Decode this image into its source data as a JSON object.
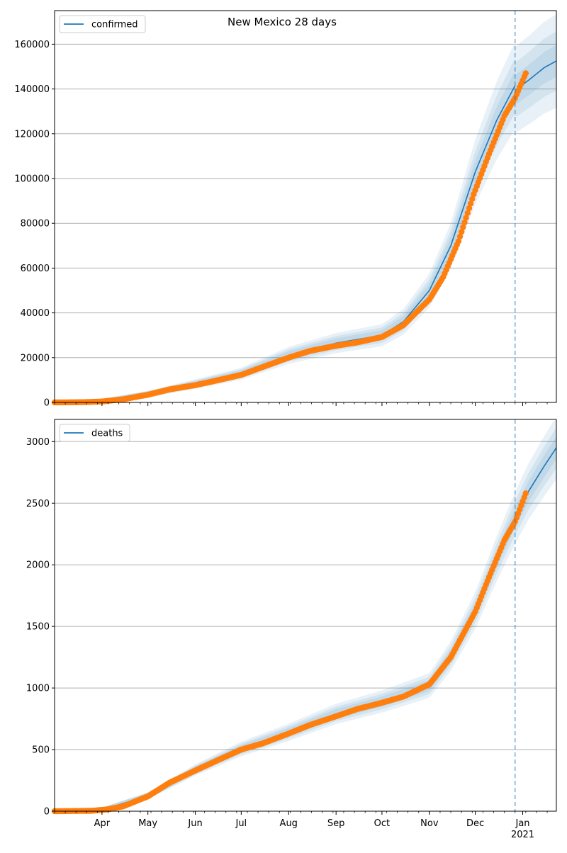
{
  "title": "New Mexico 28 days",
  "colors": {
    "model_line": "#1f77b4",
    "band": "#1f77b4",
    "observed": "#ff7f0e",
    "forecast_marker": "#1f77b4",
    "grid": "#b0b0b0"
  },
  "x_axis": {
    "date_range": [
      "2020-03-01",
      "2021-01-23"
    ],
    "month_labels": [
      {
        "date": "2020-04-01",
        "label": "Apr"
      },
      {
        "date": "2020-05-01",
        "label": "May"
      },
      {
        "date": "2020-06-01",
        "label": "Jun"
      },
      {
        "date": "2020-07-01",
        "label": "Jul"
      },
      {
        "date": "2020-08-01",
        "label": "Aug"
      },
      {
        "date": "2020-09-01",
        "label": "Sep"
      },
      {
        "date": "2020-10-01",
        "label": "Oct"
      },
      {
        "date": "2020-11-01",
        "label": "Nov"
      },
      {
        "date": "2020-12-01",
        "label": "Dec"
      },
      {
        "date": "2021-01-01",
        "label": "Jan"
      }
    ],
    "year_label": "2021",
    "forecast_start": "2020-12-27"
  },
  "chart_data": [
    {
      "type": "line",
      "legend": "confirmed",
      "legend_position": "top-left",
      "grid": "y",
      "ylim": [
        0,
        175000
      ],
      "yticks": [
        0,
        20000,
        40000,
        60000,
        80000,
        100000,
        120000,
        140000,
        160000
      ],
      "ytick_labels": [
        "0",
        "20000",
        "40000",
        "60000",
        "80000",
        "100000",
        "120000",
        "140000",
        "160000"
      ],
      "observed": [
        {
          "date": "2020-03-01",
          "value": 0
        },
        {
          "date": "2020-03-20",
          "value": 100
        },
        {
          "date": "2020-04-01",
          "value": 400
        },
        {
          "date": "2020-04-15",
          "value": 1400
        },
        {
          "date": "2020-05-01",
          "value": 3400
        },
        {
          "date": "2020-05-15",
          "value": 5800
        },
        {
          "date": "2020-06-01",
          "value": 7700
        },
        {
          "date": "2020-06-15",
          "value": 9800
        },
        {
          "date": "2020-07-01",
          "value": 12300
        },
        {
          "date": "2020-07-15",
          "value": 15800
        },
        {
          "date": "2020-08-01",
          "value": 20000
        },
        {
          "date": "2020-08-15",
          "value": 23000
        },
        {
          "date": "2020-09-01",
          "value": 25300
        },
        {
          "date": "2020-09-15",
          "value": 26800
        },
        {
          "date": "2020-10-01",
          "value": 29200
        },
        {
          "date": "2020-10-15",
          "value": 34500
        },
        {
          "date": "2020-11-01",
          "value": 46000
        },
        {
          "date": "2020-11-10",
          "value": 56000
        },
        {
          "date": "2020-11-20",
          "value": 72000
        },
        {
          "date": "2020-11-30",
          "value": 93000
        },
        {
          "date": "2020-12-10",
          "value": 111000
        },
        {
          "date": "2020-12-20",
          "value": 128000
        },
        {
          "date": "2020-12-27",
          "value": 136000
        },
        {
          "date": "2021-01-03",
          "value": 147000
        }
      ],
      "model": [
        {
          "date": "2020-03-01",
          "value": 0
        },
        {
          "date": "2020-04-01",
          "value": 500
        },
        {
          "date": "2020-05-01",
          "value": 3700
        },
        {
          "date": "2020-06-01",
          "value": 8200
        },
        {
          "date": "2020-07-01",
          "value": 12800
        },
        {
          "date": "2020-08-01",
          "value": 21000
        },
        {
          "date": "2020-09-01",
          "value": 26500
        },
        {
          "date": "2020-10-01",
          "value": 30000
        },
        {
          "date": "2020-10-15",
          "value": 36000
        },
        {
          "date": "2020-11-01",
          "value": 50000
        },
        {
          "date": "2020-11-15",
          "value": 70000
        },
        {
          "date": "2020-12-01",
          "value": 103000
        },
        {
          "date": "2020-12-15",
          "value": 126000
        },
        {
          "date": "2020-12-27",
          "value": 141500
        }
      ],
      "forecast": [
        {
          "date": "2020-12-27",
          "value": 139500
        },
        {
          "date": "2021-01-05",
          "value": 144000
        },
        {
          "date": "2021-01-15",
          "value": 149500
        },
        {
          "date": "2021-01-23",
          "value": 152500
        }
      ],
      "band_spread": [
        0.04,
        0.08,
        0.13
      ]
    },
    {
      "type": "line",
      "legend": "deaths",
      "legend_position": "top-left",
      "grid": "y",
      "ylim": [
        0,
        3180
      ],
      "yticks": [
        0,
        500,
        1000,
        1500,
        2000,
        2500,
        3000
      ],
      "ytick_labels": [
        "0",
        "500",
        "1000",
        "1500",
        "2000",
        "2500",
        "3000"
      ],
      "observed": [
        {
          "date": "2020-03-01",
          "value": 0
        },
        {
          "date": "2020-03-25",
          "value": 3
        },
        {
          "date": "2020-04-05",
          "value": 15
        },
        {
          "date": "2020-04-15",
          "value": 40
        },
        {
          "date": "2020-05-01",
          "value": 120
        },
        {
          "date": "2020-05-15",
          "value": 230
        },
        {
          "date": "2020-06-01",
          "value": 330
        },
        {
          "date": "2020-06-15",
          "value": 410
        },
        {
          "date": "2020-07-01",
          "value": 500
        },
        {
          "date": "2020-07-15",
          "value": 550
        },
        {
          "date": "2020-08-01",
          "value": 630
        },
        {
          "date": "2020-08-15",
          "value": 700
        },
        {
          "date": "2020-09-01",
          "value": 770
        },
        {
          "date": "2020-09-15",
          "value": 830
        },
        {
          "date": "2020-10-01",
          "value": 880
        },
        {
          "date": "2020-10-15",
          "value": 930
        },
        {
          "date": "2020-11-01",
          "value": 1030
        },
        {
          "date": "2020-11-15",
          "value": 1250
        },
        {
          "date": "2020-12-01",
          "value": 1620
        },
        {
          "date": "2020-12-10",
          "value": 1900
        },
        {
          "date": "2020-12-20",
          "value": 2200
        },
        {
          "date": "2020-12-27",
          "value": 2350
        },
        {
          "date": "2021-01-03",
          "value": 2580
        }
      ],
      "model": [
        {
          "date": "2020-03-01",
          "value": 0
        },
        {
          "date": "2020-04-01",
          "value": 10
        },
        {
          "date": "2020-05-01",
          "value": 125
        },
        {
          "date": "2020-06-01",
          "value": 335
        },
        {
          "date": "2020-07-01",
          "value": 505
        },
        {
          "date": "2020-08-01",
          "value": 640
        },
        {
          "date": "2020-09-01",
          "value": 790
        },
        {
          "date": "2020-10-01",
          "value": 890
        },
        {
          "date": "2020-11-01",
          "value": 1020
        },
        {
          "date": "2020-11-15",
          "value": 1260
        },
        {
          "date": "2020-12-01",
          "value": 1630
        },
        {
          "date": "2020-12-15",
          "value": 2050
        },
        {
          "date": "2020-12-27",
          "value": 2380
        }
      ],
      "forecast": [
        {
          "date": "2020-12-27",
          "value": 2380
        },
        {
          "date": "2021-01-05",
          "value": 2600
        },
        {
          "date": "2021-01-15",
          "value": 2800
        },
        {
          "date": "2021-01-23",
          "value": 2950
        }
      ],
      "band_spread": [
        0.025,
        0.05,
        0.08
      ]
    }
  ]
}
